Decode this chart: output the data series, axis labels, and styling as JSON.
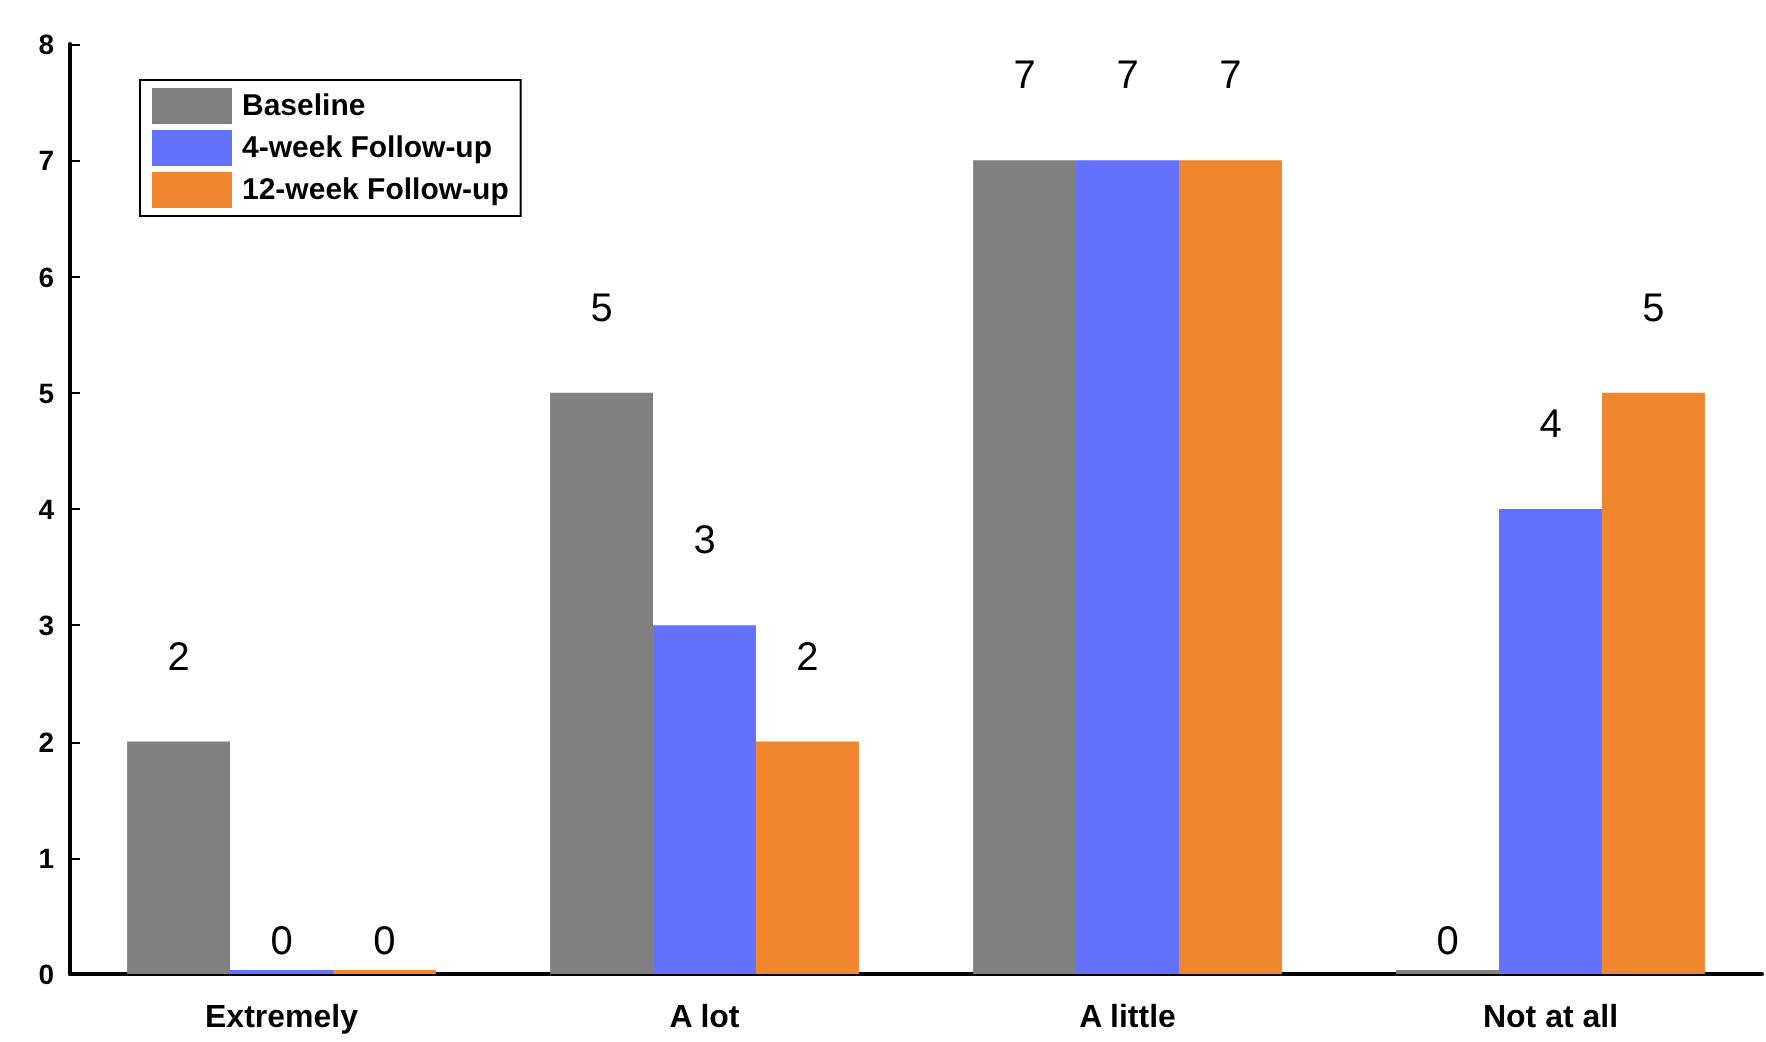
{
  "chart_data": {
    "type": "bar",
    "categories": [
      "Extremely",
      "A lot",
      "A little",
      "Not at all"
    ],
    "series": [
      {
        "name": "Baseline",
        "color": "#808080",
        "values": [
          2,
          5,
          7,
          0
        ]
      },
      {
        "name": "4-week Follow-up",
        "color": "#6372fc",
        "values": [
          0,
          3,
          7,
          4
        ]
      },
      {
        "name": "12-week Follow-up",
        "color": "#f0862d",
        "values": [
          0,
          2,
          7,
          5
        ]
      }
    ],
    "ylim": [
      0,
      8
    ],
    "yticks": [
      0,
      1,
      2,
      3,
      4,
      5,
      6,
      7,
      8
    ],
    "grid": false,
    "legend": "top left",
    "data_labels": true
  }
}
